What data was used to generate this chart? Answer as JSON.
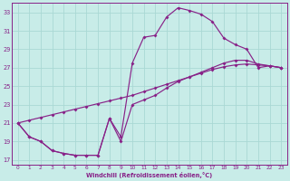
{
  "xlabel": "Windchill (Refroidissement éolien,°C)",
  "bg_color": "#c8ece8",
  "line_color": "#882288",
  "grid_color": "#aad8d4",
  "xlim": [
    -0.5,
    23.5
  ],
  "ylim": [
    16.5,
    34.0
  ],
  "yticks": [
    17,
    19,
    21,
    23,
    25,
    27,
    29,
    31,
    33
  ],
  "xticks": [
    0,
    1,
    2,
    3,
    4,
    5,
    6,
    7,
    8,
    9,
    10,
    11,
    12,
    13,
    14,
    15,
    16,
    17,
    18,
    19,
    20,
    21,
    22,
    23
  ],
  "curve_top": [
    21.0,
    19.5,
    19.0,
    18.0,
    17.7,
    17.5,
    17.5,
    17.5,
    21.5,
    19.5,
    27.5,
    30.3,
    30.5,
    32.5,
    33.5,
    33.2,
    32.8,
    32.0,
    30.2,
    29.5,
    29.0,
    27.0,
    27.2,
    27.0
  ],
  "curve_mid": [
    21.0,
    21.3,
    21.6,
    21.9,
    22.2,
    22.5,
    22.8,
    23.1,
    23.4,
    23.7,
    24.0,
    24.4,
    24.8,
    25.2,
    25.6,
    26.0,
    26.4,
    26.8,
    27.1,
    27.3,
    27.4,
    27.3,
    27.2,
    27.0
  ],
  "curve_bot": [
    21.0,
    19.5,
    19.0,
    18.0,
    17.7,
    17.5,
    17.5,
    17.5,
    21.5,
    19.0,
    23.0,
    23.5,
    24.0,
    24.8,
    25.5,
    26.0,
    26.5,
    27.0,
    27.5,
    27.8,
    27.8,
    27.4,
    27.2,
    27.0
  ]
}
